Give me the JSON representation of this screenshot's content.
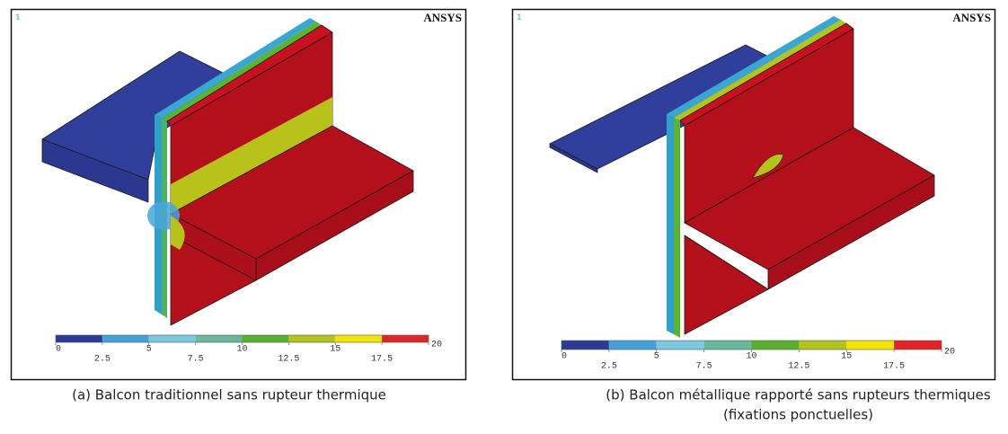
{
  "panels": [
    {
      "index_label": "1",
      "logo": "ANSYS",
      "colorbar": {
        "ticks": [
          0,
          2.5,
          5,
          7.5,
          10,
          12.5,
          15,
          17.5,
          20
        ],
        "colors": [
          "#2c3c94",
          "#45a2d8",
          "#7cc8dc",
          "#6ab89a",
          "#5aae34",
          "#b3c41e",
          "#f2e400",
          "#e0242a"
        ]
      },
      "caption": [
        "(a) Balcon traditionnel sans rupteur thermique"
      ]
    },
    {
      "index_label": "1",
      "logo": "ANSYS",
      "colorbar": {
        "ticks": [
          0,
          2.5,
          5,
          7.5,
          10,
          12.5,
          15,
          17.5,
          20
        ],
        "colors": [
          "#2c3c94",
          "#45a2d8",
          "#7cc8dc",
          "#6ab89a",
          "#5aae34",
          "#b3c41e",
          "#f2e400",
          "#e0242a"
        ]
      },
      "caption": [
        "(b) Balcon métallique rapporté sans rupteurs thermiques",
        "(fixations ponctuelles)"
      ]
    }
  ]
}
